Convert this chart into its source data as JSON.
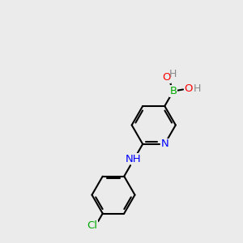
{
  "bg_color": "#ebebeb",
  "bond_color": "#000000",
  "bond_width": 1.5,
  "atom_colors": {
    "N": "#0000ff",
    "O": "#ff0000",
    "B": "#00aa00",
    "Cl": "#00aa00",
    "H": "#888888",
    "C": "#000000"
  },
  "font_size": 9.5,
  "figsize": [
    3.0,
    3.0
  ],
  "dpi": 100
}
